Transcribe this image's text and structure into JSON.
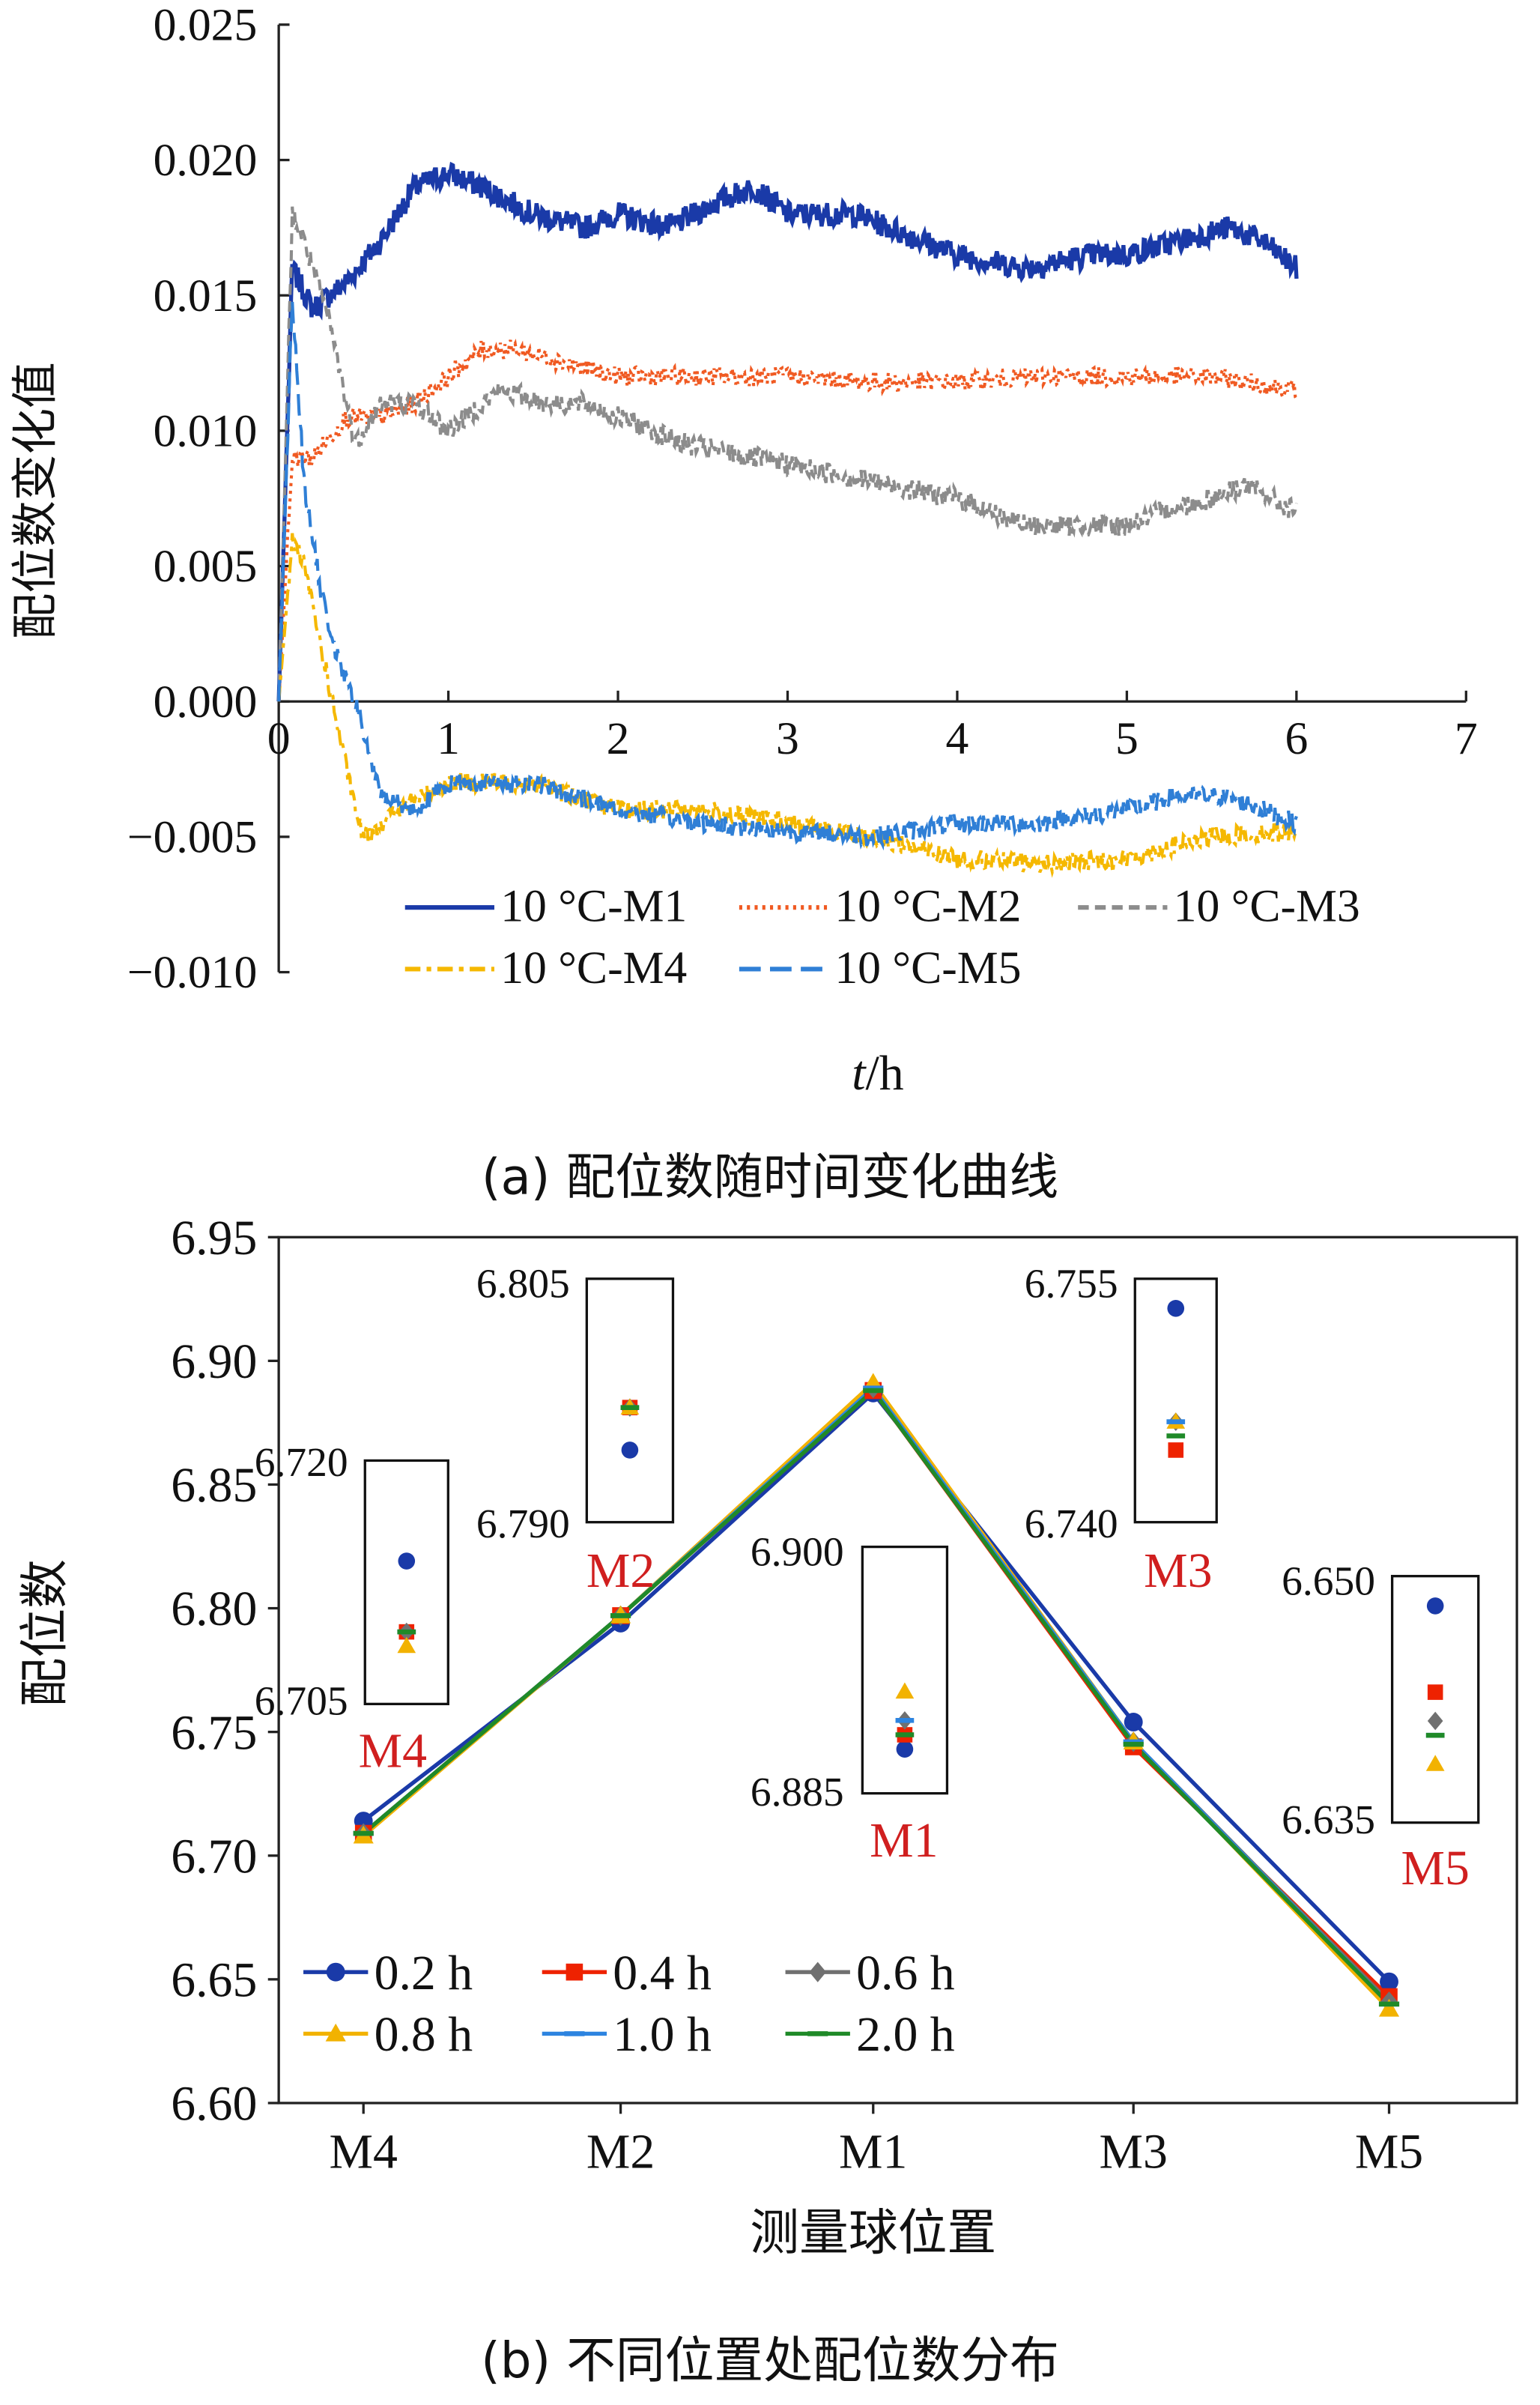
{
  "colors": {
    "M1": "#1a3aa8",
    "M2": "#f05a22",
    "M3": "#8c8c8c",
    "M4": "#f5b800",
    "M5": "#2f7fd6",
    "t02": "#1a3aa8",
    "t04": "#ee2200",
    "t06": "#707070",
    "t08": "#f2b200",
    "t10": "#2d84e0",
    "t20": "#1f8a28",
    "label_red": "#d01f1f",
    "axis": "#222222"
  },
  "chart_data": [
    {
      "type": "line",
      "caption": "(a) 配位数随时间变化曲线",
      "xlabel_italic": "t",
      "xlabel_rest": "/h",
      "ylabel": "配位数变化值",
      "xlim": [
        0,
        7
      ],
      "ylim": [
        -0.01,
        0.025
      ],
      "xticks": [
        "0",
        "1",
        "2",
        "3",
        "4",
        "5",
        "6",
        "7"
      ],
      "yticks": [
        "−0.010",
        "−0.005",
        "0.000",
        "0.005",
        "0.010",
        "0.015",
        "0.020",
        "0.025"
      ],
      "legend": [
        "10 °C-M1",
        "10 °C-M2",
        "10 °C-M3",
        "10 °C-M4",
        "10 °C-M5"
      ],
      "series": [
        {
          "name": "10 °C-M1",
          "style": "solid",
          "x": [
            0,
            0.08,
            0.2,
            0.4,
            0.6,
            0.8,
            1.0,
            1.2,
            1.5,
            1.8,
            2.0,
            2.3,
            2.6,
            2.8,
            3.0,
            3.4,
            3.8,
            4.0,
            4.4,
            4.8,
            5.0,
            5.3,
            5.6,
            5.8,
            6.0
          ],
          "y": [
            0,
            0.016,
            0.0145,
            0.0155,
            0.017,
            0.019,
            0.0195,
            0.019,
            0.018,
            0.0175,
            0.018,
            0.0175,
            0.0185,
            0.019,
            0.018,
            0.018,
            0.017,
            0.0165,
            0.016,
            0.0165,
            0.0165,
            0.017,
            0.0175,
            0.017,
            0.016
          ]
        },
        {
          "name": "10 °C-M2",
          "style": "dotted",
          "x": [
            0,
            0.08,
            0.2,
            0.4,
            0.6,
            0.8,
            1.0,
            1.2,
            1.4,
            1.7,
            2.0,
            2.5,
            3.0,
            3.5,
            4.0,
            4.5,
            5.0,
            5.5,
            6.0
          ],
          "y": [
            0,
            0.009,
            0.009,
            0.0105,
            0.0105,
            0.011,
            0.012,
            0.013,
            0.013,
            0.0125,
            0.012,
            0.012,
            0.012,
            0.0118,
            0.0118,
            0.012,
            0.012,
            0.012,
            0.0115
          ]
        },
        {
          "name": "10 °C-M3",
          "style": "dashed",
          "x": [
            0,
            0.08,
            0.15,
            0.3,
            0.45,
            0.6,
            0.8,
            1.0,
            1.3,
            1.6,
            1.8,
            2.0,
            2.4,
            2.8,
            3.2,
            3.6,
            4.0,
            4.4,
            4.8,
            5.0,
            5.2,
            5.5,
            5.7,
            6.0
          ],
          "y": [
            0,
            0.018,
            0.017,
            0.014,
            0.0095,
            0.011,
            0.011,
            0.01,
            0.0115,
            0.011,
            0.011,
            0.0105,
            0.0095,
            0.009,
            0.0085,
            0.008,
            0.0075,
            0.0065,
            0.0065,
            0.0065,
            0.007,
            0.0075,
            0.008,
            0.007
          ]
        },
        {
          "name": "10 °C-M4",
          "style": "dashdot",
          "x": [
            0,
            0.08,
            0.15,
            0.25,
            0.35,
            0.45,
            0.5,
            0.7,
            1.0,
            1.5,
            2.0,
            2.5,
            3.0,
            3.5,
            4.0,
            4.5,
            5.0,
            5.5,
            6.0
          ],
          "y": [
            0,
            0.006,
            0.005,
            0.002,
            -0.001,
            -0.004,
            -0.005,
            -0.004,
            -0.003,
            -0.003,
            -0.004,
            -0.004,
            -0.0045,
            -0.005,
            -0.0058,
            -0.006,
            -0.0058,
            -0.005,
            -0.0048
          ]
        },
        {
          "name": "10 °C-M5",
          "style": "longdash",
          "x": [
            0,
            0.08,
            0.15,
            0.25,
            0.35,
            0.45,
            0.6,
            0.8,
            1.0,
            1.5,
            2.0,
            2.5,
            3.0,
            3.5,
            4.0,
            4.5,
            5.0,
            5.3,
            5.6,
            6.0
          ],
          "y": [
            0,
            0.015,
            0.008,
            0.004,
            0.0015,
            0.0,
            -0.0035,
            -0.004,
            -0.003,
            -0.003,
            -0.004,
            -0.0045,
            -0.0048,
            -0.005,
            -0.0045,
            -0.0045,
            -0.004,
            -0.0035,
            -0.0035,
            -0.0045
          ]
        }
      ]
    },
    {
      "type": "line",
      "caption": "(b) 不同位置处配位数分布",
      "xlabel": "测量球位置",
      "ylabel": "配位数",
      "categories": [
        "M4",
        "M2",
        "M1",
        "M3",
        "M5"
      ],
      "ylim": [
        6.6,
        6.95
      ],
      "yticks": [
        "6.60",
        "6.65",
        "6.70",
        "6.75",
        "6.80",
        "6.85",
        "6.90",
        "6.95"
      ],
      "legend": [
        "0.2 h",
        "0.4 h",
        "0.6 h",
        "0.8 h",
        "1.0 h",
        "2.0 h"
      ],
      "series": [
        {
          "name": "0.2 h",
          "marker": "circle",
          "values": [
            6.714,
            6.794,
            6.887,
            6.754,
            6.649
          ]
        },
        {
          "name": "0.4 h",
          "marker": "square",
          "values": [
            6.709,
            6.797,
            6.888,
            6.744,
            6.643
          ]
        },
        {
          "name": "0.6 h",
          "marker": "diamond",
          "values": [
            6.709,
            6.797,
            6.889,
            6.746,
            6.641
          ]
        },
        {
          "name": "0.8 h",
          "marker": "triangle",
          "values": [
            6.708,
            6.797,
            6.891,
            6.746,
            6.638
          ]
        },
        {
          "name": "1.0 h",
          "marker": "dash",
          "values": [
            6.709,
            6.797,
            6.889,
            6.746,
            6.64
          ]
        },
        {
          "name": "2.0 h",
          "marker": "dash",
          "values": [
            6.709,
            6.797,
            6.888,
            6.745,
            6.64
          ]
        }
      ],
      "insets": [
        {
          "label": "M4",
          "top": "6.720",
          "bottom": "6.705",
          "ymin": 6.705,
          "ymax": 6.72
        },
        {
          "label": "M2",
          "top": "6.805",
          "bottom": "6.790",
          "ymin": 6.79,
          "ymax": 6.805
        },
        {
          "label": "M1",
          "top": "6.900",
          "bottom": "6.885",
          "ymin": 6.885,
          "ymax": 6.9
        },
        {
          "label": "M3",
          "top": "6.755",
          "bottom": "6.740",
          "ymin": 6.74,
          "ymax": 6.755
        },
        {
          "label": "M5",
          "top": "6.650",
          "bottom": "6.635",
          "ymin": 6.635,
          "ymax": 6.65
        }
      ]
    }
  ]
}
